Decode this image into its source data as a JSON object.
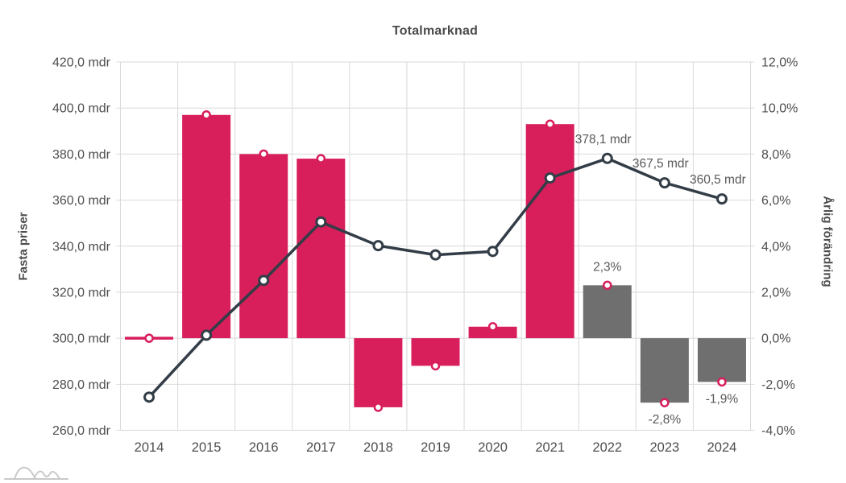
{
  "title": "Totalmarknad",
  "colors": {
    "bar_actual": "#d81e5b",
    "bar_forecast": "#6f6f6f",
    "line": "#333d47",
    "marker_ring": "#d81e5b",
    "marker_fill": "#ffffff",
    "grid": "#d9d9d9",
    "tick_text": "#4e4e4e",
    "annotation_text": "#595959",
    "logo": "#c9c9c9"
  },
  "chart_data": {
    "type": "bar+line combo",
    "categories": [
      "2014",
      "2015",
      "2016",
      "2017",
      "2018",
      "2019",
      "2020",
      "2021",
      "2022",
      "2023",
      "2024"
    ],
    "series": [
      {
        "name": "Årlig förändring",
        "type": "bar",
        "axis": "right",
        "unit": "%",
        "values": [
          0.0,
          9.7,
          8.0,
          7.8,
          -3.0,
          -1.2,
          0.5,
          9.3,
          2.3,
          -2.8,
          -1.9
        ],
        "point_colors": [
          "#d81e5b",
          "#d81e5b",
          "#d81e5b",
          "#d81e5b",
          "#d81e5b",
          "#d81e5b",
          "#d81e5b",
          "#d81e5b",
          "#6f6f6f",
          "#6f6f6f",
          "#6f6f6f"
        ],
        "labels": [
          null,
          null,
          null,
          null,
          null,
          null,
          null,
          null,
          "2,3%",
          "-2,8%",
          "-1,9%"
        ]
      },
      {
        "name": "Fasta priser",
        "type": "line",
        "axis": "left",
        "unit": "mdr",
        "values": [
          274.4,
          301.3,
          325.1,
          350.5,
          340.2,
          336.2,
          337.7,
          369.6,
          378.1,
          367.5,
          360.5
        ],
        "labels": [
          null,
          null,
          null,
          null,
          null,
          null,
          null,
          null,
          "378,1 mdr",
          "367,5 mdr",
          "360,5 mdr"
        ]
      }
    ],
    "left_axis": {
      "title": "Fasta priser",
      "min": 260,
      "max": 420,
      "step": 20,
      "tick_labels": [
        "420,0 mdr",
        "400,0 mdr",
        "380,0 mdr",
        "360,0 mdr",
        "340,0 mdr",
        "320,0 mdr",
        "300,0 mdr",
        "280,0 mdr",
        "260,0 mdr"
      ]
    },
    "right_axis": {
      "title": "Årlig förändring",
      "min": -4,
      "max": 12,
      "step": 2,
      "tick_labels": [
        "12,0%",
        "10,0%",
        "8,0%",
        "6,0%",
        "4,0%",
        "2,0%",
        "0,0%",
        "-2,0%",
        "-4,0%"
      ]
    },
    "grid": true,
    "legend": "none"
  }
}
